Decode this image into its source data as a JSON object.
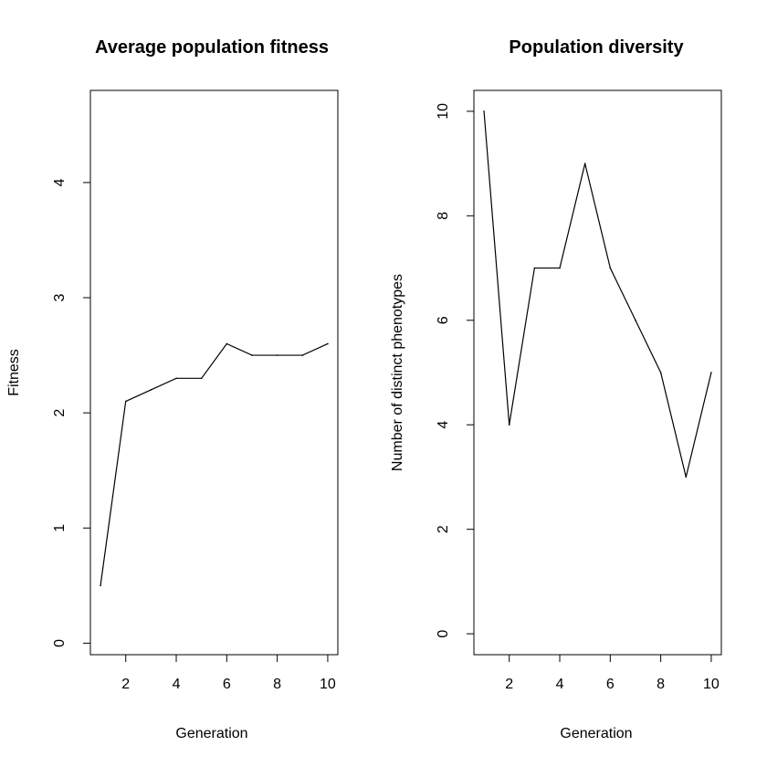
{
  "chart_data": [
    {
      "type": "line",
      "title": "Average population fitness",
      "xlabel": "Generation",
      "ylabel": "Fitness",
      "x": [
        1,
        2,
        3,
        4,
        5,
        6,
        7,
        8,
        9,
        10
      ],
      "series": [
        {
          "values": [
            0.5,
            2.1,
            2.2,
            2.3,
            2.3,
            2.6,
            2.5,
            2.5,
            2.5,
            2.6
          ]
        }
      ],
      "xlim": [
        0.6,
        10.4
      ],
      "ylim": [
        -0.1,
        4.8
      ],
      "xticks": [
        2,
        4,
        6,
        8,
        10
      ],
      "yticks": [
        0,
        1,
        2,
        3,
        4
      ],
      "grid": false,
      "color": "#000000"
    },
    {
      "type": "line",
      "title": "Population diversity",
      "xlabel": "Generation",
      "ylabel": "Number of distinct phenotypes",
      "x": [
        1,
        2,
        3,
        4,
        5,
        6,
        7,
        8,
        9,
        10
      ],
      "series": [
        {
          "values": [
            10,
            4,
            7,
            7,
            9,
            7,
            6,
            5,
            3,
            5
          ]
        }
      ],
      "xlim": [
        0.6,
        10.4
      ],
      "ylim": [
        -0.4,
        10.4
      ],
      "xticks": [
        2,
        4,
        6,
        8,
        10
      ],
      "yticks": [
        0,
        2,
        4,
        6,
        8,
        10
      ],
      "grid": false,
      "color": "#000000"
    }
  ]
}
